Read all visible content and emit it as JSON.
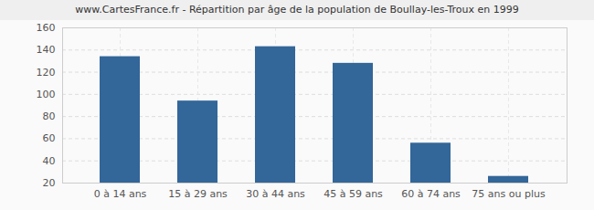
{
  "chart_data": {
    "type": "bar",
    "title": "www.CartesFrance.fr - Répartition par âge de la population de Boullay-les-Troux en 1999",
    "categories": [
      "0 à 14 ans",
      "15 à 29 ans",
      "30 à 44 ans",
      "45 à 59 ans",
      "60 à 74 ans",
      "75 ans ou plus"
    ],
    "values": [
      134,
      94,
      143,
      128,
      56,
      26
    ],
    "color": "#336699",
    "ylim": [
      20,
      160
    ],
    "yticks": [
      20,
      40,
      60,
      80,
      100,
      120,
      140,
      160
    ],
    "grid": true
  }
}
